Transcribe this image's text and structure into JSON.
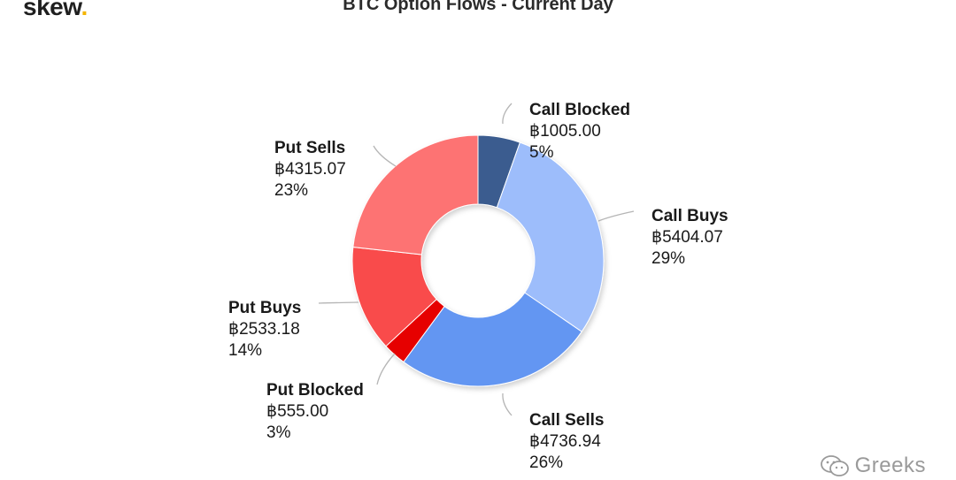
{
  "header": {
    "brand": "skew",
    "brand_dot": ".",
    "title": "BTC Option Flows - Current Day"
  },
  "watermark": {
    "text": "Greeks",
    "icon": "wechat-icon"
  },
  "colors": {
    "call_blocked": "#3b5b8f",
    "call_buys": "#9dbdfb",
    "call_sells": "#6496f2",
    "put_blocked": "#e60000",
    "put_buys": "#f94b4b",
    "put_sells": "#fd7373",
    "brand_dot": "#f4b400"
  },
  "chart_data": {
    "type": "pie",
    "donut": true,
    "title": "BTC Option Flows - Current Day",
    "slices": [
      {
        "label": "Call Blocked",
        "value": 1005.0,
        "value_text": "฿1005.00",
        "percent_text": "5%",
        "color": "#3b5b8f"
      },
      {
        "label": "Call Buys",
        "value": 5404.07,
        "value_text": "฿5404.07",
        "percent_text": "29%",
        "color": "#9dbdfb"
      },
      {
        "label": "Call Sells",
        "value": 4736.94,
        "value_text": "฿4736.94",
        "percent_text": "26%",
        "color": "#6496f2"
      },
      {
        "label": "Put Blocked",
        "value": 555.0,
        "value_text": "฿555.00",
        "percent_text": "3%",
        "color": "#e60000"
      },
      {
        "label": "Put Buys",
        "value": 2533.18,
        "value_text": "฿2533.18",
        "percent_text": "14%",
        "color": "#f94b4b"
      },
      {
        "label": "Put Sells",
        "value": 4315.07,
        "value_text": "฿4315.07",
        "percent_text": "23%",
        "color": "#fd7373"
      }
    ]
  }
}
